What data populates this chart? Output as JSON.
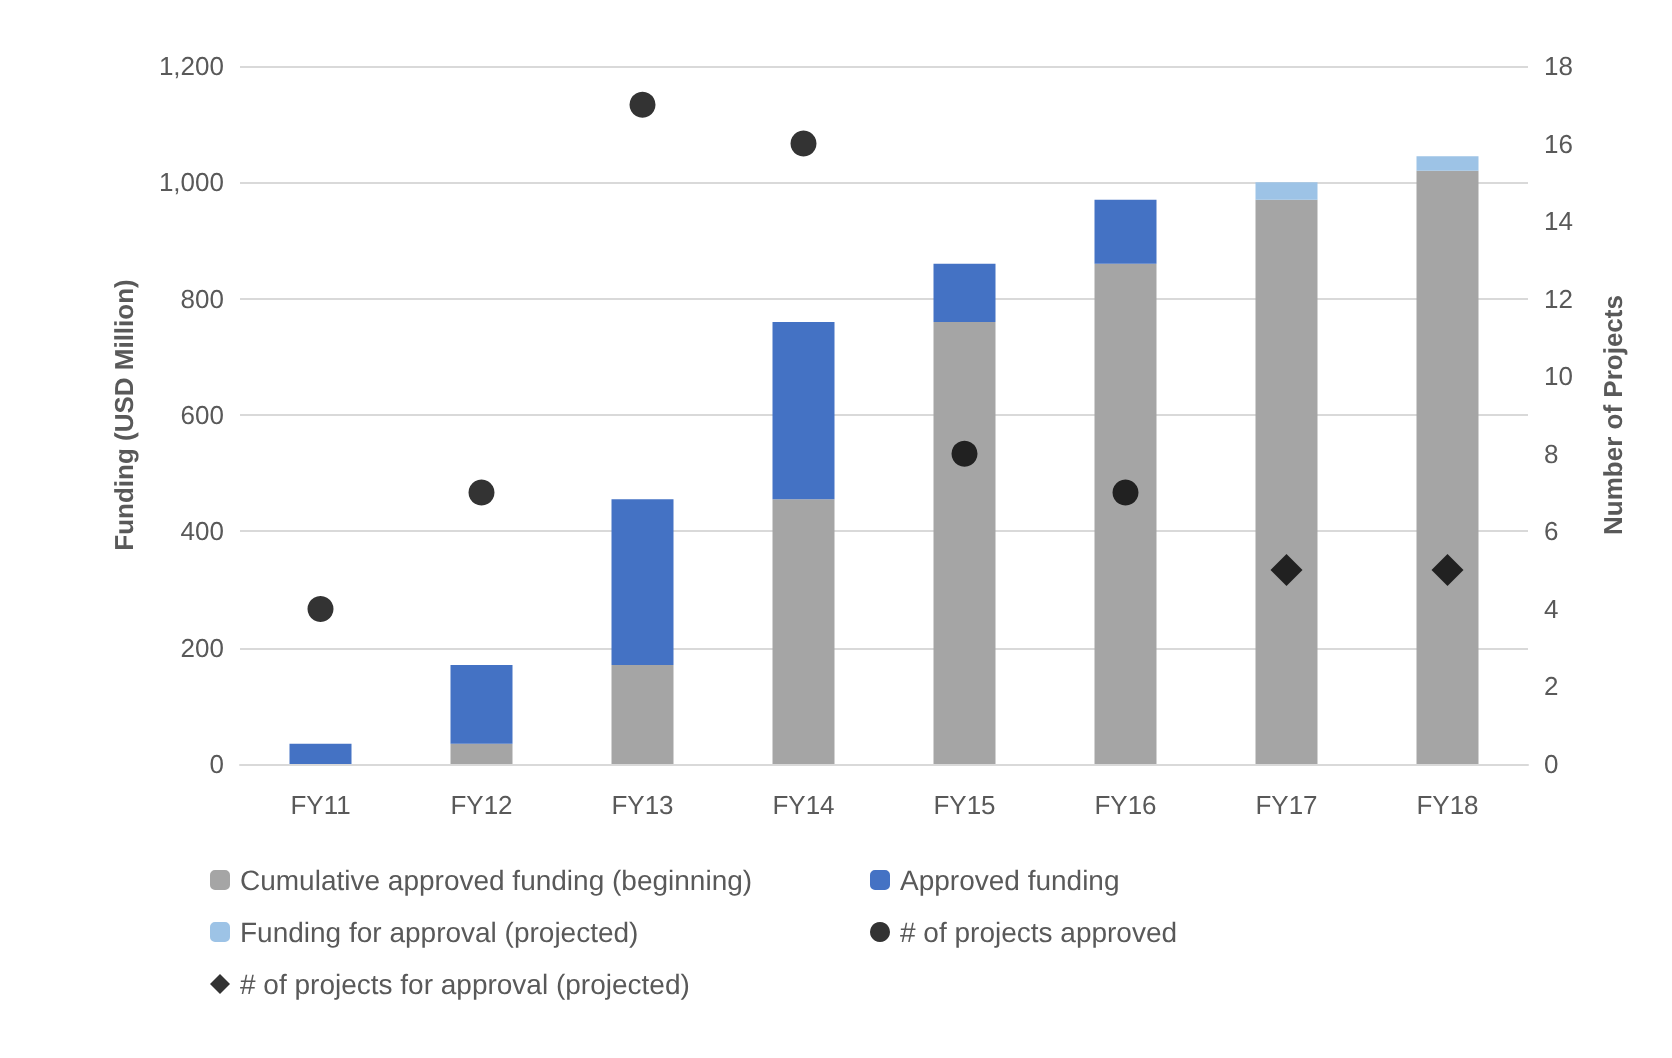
{
  "chart_data": {
    "type": "bar",
    "stacked": true,
    "categories": [
      "FY11",
      "FY12",
      "FY13",
      "FY14",
      "FY15",
      "FY16",
      "FY17",
      "FY18"
    ],
    "ylabel": "Funding (USD Million)",
    "y2label": "Number of Projects",
    "ylim": [
      0,
      1200
    ],
    "yticks": [
      0,
      {
        "value": 200,
        "label": "200"
      },
      {
        "value": 400,
        "label": "400"
      },
      {
        "value": 600,
        "label": "600"
      },
      {
        "value": 800,
        "label": "800"
      },
      {
        "value": 1000,
        "label": "1,000"
      },
      {
        "value": 1200,
        "label": "1,200"
      }
    ],
    "y2lim": [
      0,
      18
    ],
    "y2ticks": [
      0,
      2,
      4,
      6,
      8,
      10,
      12,
      14,
      16,
      18
    ],
    "grid": "y",
    "legend": "bottom",
    "series": [
      {
        "name": "Cumulative approved funding (beginning)",
        "color": "#a5a5a5",
        "values": [
          0,
          35,
          170,
          455,
          760,
          860,
          970,
          1020
        ]
      },
      {
        "name": "Approved funding",
        "color": "#4472c4",
        "values": [
          35,
          135,
          285,
          305,
          100,
          110,
          null,
          null
        ]
      },
      {
        "name": "Funding for approval (projected)",
        "color": "#9dc3e6",
        "values": [
          null,
          null,
          null,
          null,
          null,
          null,
          30,
          25
        ]
      },
      {
        "name": "# of projects approved",
        "type": "scatter",
        "axis": "y2",
        "marker": "circle",
        "color": "#000000",
        "values": [
          4,
          7,
          17,
          16,
          8,
          7,
          null,
          null
        ]
      },
      {
        "name": "# of projects for approval (projected)",
        "type": "scatter",
        "axis": "y2",
        "marker": "diamond",
        "color": "#000000",
        "values": [
          null,
          null,
          null,
          null,
          null,
          null,
          5,
          5
        ]
      }
    ]
  }
}
